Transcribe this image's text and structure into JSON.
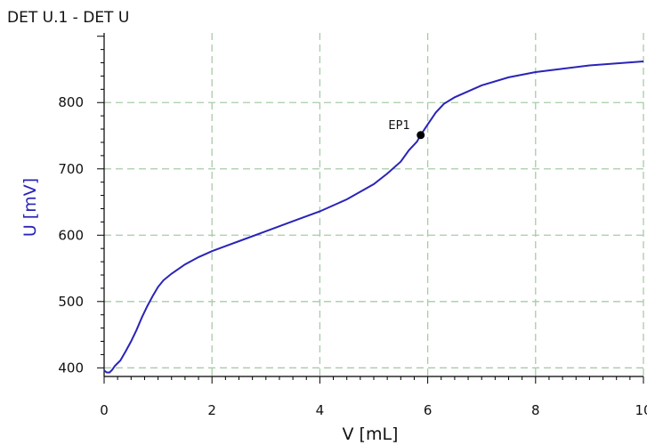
{
  "chart_data": {
    "type": "line",
    "title": "DET U.1 - DET U",
    "xlabel": "V [mL]",
    "ylabel": "U [mV]",
    "xlim": [
      0,
      10
    ],
    "ylim": [
      387,
      905
    ],
    "x_ticks": [
      0,
      2,
      4,
      6,
      8,
      10
    ],
    "y_ticks": [
      400,
      500,
      600,
      700,
      800
    ],
    "grid": true,
    "colors": {
      "line": "#2a24b8",
      "grid": "#a8cba8",
      "ylabel": "#2a24b8",
      "point": "#000000"
    },
    "series": [
      {
        "x": [
          0,
          0.05,
          0.1,
          0.15,
          0.2,
          0.3,
          0.4,
          0.5,
          0.6,
          0.7,
          0.8,
          0.9,
          1.0,
          1.1,
          1.25,
          1.5,
          1.75,
          2.0,
          2.5,
          3.0,
          3.5,
          4.0,
          4.5,
          5.0,
          5.25,
          5.5,
          5.65,
          5.8,
          5.87,
          6.0,
          6.15,
          6.3,
          6.5,
          7.0,
          7.5,
          8.0,
          8.5,
          9.0,
          9.5,
          10.0
        ],
        "y": [
          396,
          393,
          393,
          397,
          403,
          411,
          425,
          440,
          457,
          476,
          493,
          508,
          522,
          532,
          542,
          556,
          567,
          576,
          591,
          606,
          621,
          636,
          654,
          677,
          693,
          711,
          728,
          741,
          751,
          767,
          785,
          798,
          808,
          826,
          838,
          846,
          851,
          856,
          859,
          862
        ]
      }
    ],
    "annotations": [
      {
        "label": "EP1",
        "x": 5.87,
        "y": 751
      }
    ]
  }
}
